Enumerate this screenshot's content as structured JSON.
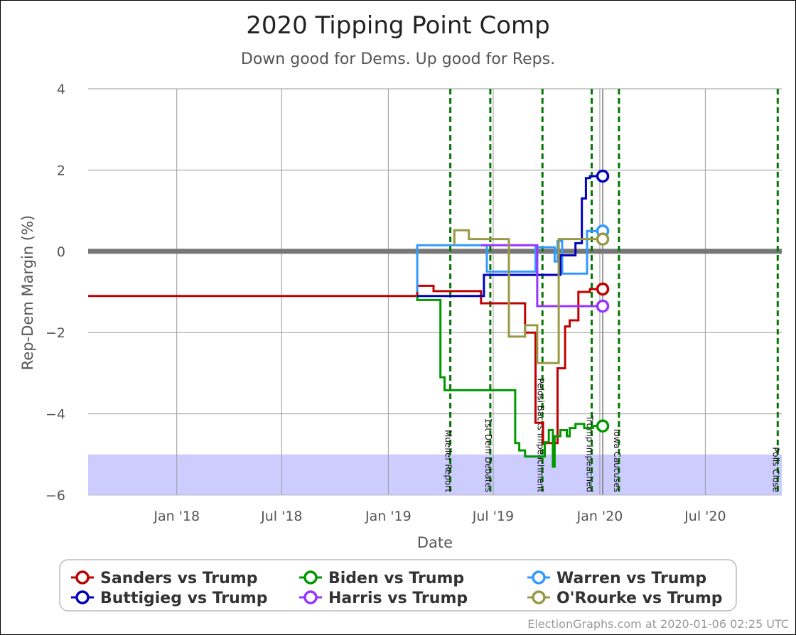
{
  "chart_data": {
    "type": "line",
    "title": "2020 Tipping Point Comp",
    "subtitle": "Down good for Dems. Up good for Reps.",
    "xlabel": "Date",
    "ylabel": "Rep-Dem Margin (%)",
    "xlim": [
      "2017-08-01",
      "2020-11-10"
    ],
    "ylim": [
      -6,
      4
    ],
    "y_ticks": [
      4,
      2,
      0,
      -2,
      -4,
      -6
    ],
    "y_tick_labels": [
      "4",
      "2",
      "0",
      "−2",
      "−4",
      "−6"
    ],
    "x_ticks": [
      {
        "date": "2018-01-01",
        "label": "Jan '18"
      },
      {
        "date": "2018-07-01",
        "label": "Jul '18"
      },
      {
        "date": "2019-01-01",
        "label": "Jan '19"
      },
      {
        "date": "2019-07-01",
        "label": "Jul '19"
      },
      {
        "date": "2020-01-01",
        "label": "Jan '20"
      },
      {
        "date": "2020-07-01",
        "label": "Jul '20"
      }
    ],
    "grid": true,
    "shaded_band": {
      "from": -6,
      "to": -5,
      "color": "#ccccff"
    },
    "zero_line_color": "#777777",
    "events": [
      {
        "date": "2019-04-18",
        "label": "Mueller Report"
      },
      {
        "date": "2019-06-26",
        "label": "1st Dem Debates"
      },
      {
        "date": "2019-09-24",
        "label": "Pelosi Backs Impeachment"
      },
      {
        "date": "2019-12-18",
        "label": "Trump Impeached"
      },
      {
        "date": "2020-02-03",
        "label": "Iowa Caucuses"
      },
      {
        "date": "2020-11-03",
        "label": "Polls Close"
      }
    ],
    "series": [
      {
        "name": "Sanders vs Trump",
        "color": "#c00000",
        "points": [
          [
            "2017-08-01",
            -1.1
          ],
          [
            "2019-02-20",
            -1.1
          ],
          [
            "2019-02-20",
            -0.85
          ],
          [
            "2019-03-20",
            -0.85
          ],
          [
            "2019-03-20",
            -0.98
          ],
          [
            "2019-06-10",
            -0.98
          ],
          [
            "2019-06-10",
            -1.28
          ],
          [
            "2019-08-25",
            -1.28
          ],
          [
            "2019-08-25",
            -2.0
          ],
          [
            "2019-09-12",
            -2.0
          ],
          [
            "2019-09-12",
            -4.22
          ],
          [
            "2019-09-25",
            -4.22
          ],
          [
            "2019-09-25",
            -4.72
          ],
          [
            "2019-10-20",
            -4.72
          ],
          [
            "2019-10-20",
            -2.88
          ],
          [
            "2019-11-02",
            -2.88
          ],
          [
            "2019-11-02",
            -1.85
          ],
          [
            "2019-11-10",
            -1.85
          ],
          [
            "2019-11-10",
            -1.7
          ],
          [
            "2019-11-25",
            -1.7
          ],
          [
            "2019-11-25",
            -1.0
          ],
          [
            "2019-12-15",
            -1.0
          ],
          [
            "2019-12-15",
            -0.93
          ],
          [
            "2020-01-06",
            -0.93
          ]
        ]
      },
      {
        "name": "Biden vs Trump",
        "color": "#009900",
        "points": [
          [
            "2019-02-20",
            -1.1
          ],
          [
            "2019-02-20",
            -1.2
          ],
          [
            "2019-04-01",
            -1.2
          ],
          [
            "2019-04-01",
            -3.1
          ],
          [
            "2019-04-08",
            -3.1
          ],
          [
            "2019-04-08",
            -3.42
          ],
          [
            "2019-08-08",
            -3.42
          ],
          [
            "2019-08-08",
            -4.72
          ],
          [
            "2019-08-15",
            -4.72
          ],
          [
            "2019-08-15",
            -4.9
          ],
          [
            "2019-08-25",
            -4.9
          ],
          [
            "2019-08-25",
            -5.05
          ],
          [
            "2019-09-28",
            -5.05
          ],
          [
            "2019-09-28",
            -4.7
          ],
          [
            "2019-10-05",
            -4.7
          ],
          [
            "2019-10-05",
            -4.4
          ],
          [
            "2019-10-12",
            -4.4
          ],
          [
            "2019-10-12",
            -5.3
          ],
          [
            "2019-10-15",
            -5.3
          ],
          [
            "2019-10-15",
            -4.55
          ],
          [
            "2019-10-25",
            -4.55
          ],
          [
            "2019-10-25",
            -4.4
          ],
          [
            "2019-11-05",
            -4.4
          ],
          [
            "2019-11-05",
            -4.55
          ],
          [
            "2019-11-10",
            -4.55
          ],
          [
            "2019-11-10",
            -4.35
          ],
          [
            "2019-11-20",
            -4.35
          ],
          [
            "2019-11-20",
            -4.25
          ],
          [
            "2019-12-05",
            -4.25
          ],
          [
            "2019-12-05",
            -4.35
          ],
          [
            "2019-12-20",
            -4.35
          ],
          [
            "2019-12-20",
            -4.3
          ],
          [
            "2020-01-06",
            -4.3
          ]
        ]
      },
      {
        "name": "Warren vs Trump",
        "color": "#3399ff",
        "points": [
          [
            "2019-02-20",
            -1.0
          ],
          [
            "2019-02-20",
            0.15
          ],
          [
            "2019-06-20",
            0.15
          ],
          [
            "2019-06-20",
            -0.5
          ],
          [
            "2019-09-12",
            -0.5
          ],
          [
            "2019-09-12",
            0.1
          ],
          [
            "2019-10-15",
            0.1
          ],
          [
            "2019-10-15",
            -0.25
          ],
          [
            "2019-10-20",
            -0.25
          ],
          [
            "2019-10-20",
            0.25
          ],
          [
            "2019-10-28",
            0.25
          ],
          [
            "2019-10-28",
            -0.55
          ],
          [
            "2019-12-10",
            -0.55
          ],
          [
            "2019-12-10",
            0.5
          ],
          [
            "2020-01-06",
            0.5
          ]
        ]
      },
      {
        "name": "Buttigieg vs Trump",
        "color": "#0000bb",
        "points": [
          [
            "2019-02-20",
            -1.1
          ],
          [
            "2019-06-15",
            -1.1
          ],
          [
            "2019-06-15",
            -0.58
          ],
          [
            "2019-10-25",
            -0.58
          ],
          [
            "2019-10-25",
            -0.1
          ],
          [
            "2019-11-20",
            -0.1
          ],
          [
            "2019-11-20",
            0.2
          ],
          [
            "2019-12-01",
            0.2
          ],
          [
            "2019-12-01",
            1.3
          ],
          [
            "2019-12-08",
            1.3
          ],
          [
            "2019-12-08",
            1.8
          ],
          [
            "2019-12-15",
            1.8
          ],
          [
            "2019-12-15",
            1.85
          ],
          [
            "2020-01-06",
            1.85
          ]
        ]
      },
      {
        "name": "Harris vs Trump",
        "color": "#9933ff",
        "points": [
          [
            "2019-06-10",
            0.15
          ],
          [
            "2019-09-15",
            0.15
          ],
          [
            "2019-09-15",
            -1.35
          ],
          [
            "2020-01-06",
            -1.35
          ]
        ]
      },
      {
        "name": "O'Rourke vs Trump",
        "color": "#999944",
        "points": [
          [
            "2019-04-25",
            0.15
          ],
          [
            "2019-04-25",
            0.52
          ],
          [
            "2019-05-20",
            0.52
          ],
          [
            "2019-05-20",
            0.3
          ],
          [
            "2019-07-28",
            0.3
          ],
          [
            "2019-07-28",
            -2.1
          ],
          [
            "2019-08-25",
            -2.1
          ],
          [
            "2019-08-25",
            -1.82
          ],
          [
            "2019-09-15",
            -1.82
          ],
          [
            "2019-09-15",
            -2.75
          ],
          [
            "2019-10-22",
            -2.75
          ],
          [
            "2019-10-22",
            0.3
          ],
          [
            "2019-12-18",
            0.3
          ],
          [
            "2019-12-18",
            0.3
          ],
          [
            "2020-01-06",
            0.3
          ]
        ]
      }
    ],
    "legend": {
      "placement": "bottom",
      "columns": 3
    }
  },
  "footer": {
    "credit": "ElectionGraphs.com at 2020-01-06 02:25 UTC"
  }
}
